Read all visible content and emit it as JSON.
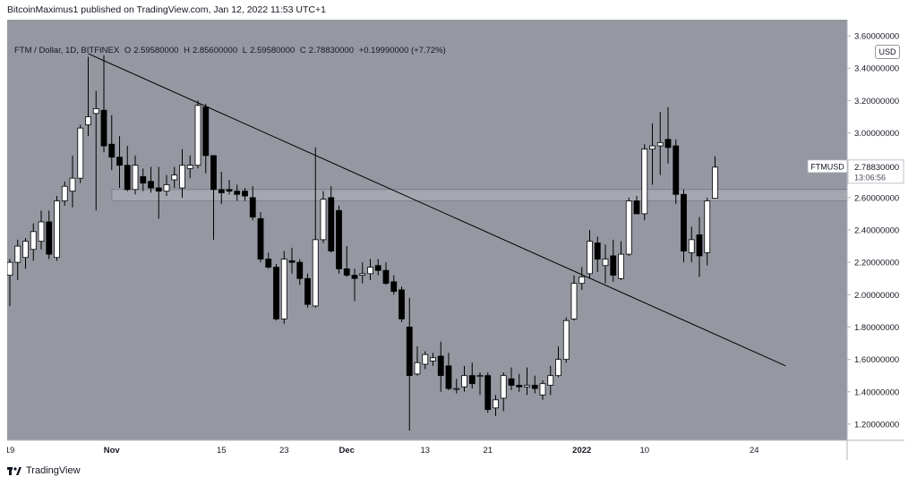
{
  "header": {
    "publisher_text": "BitcoinMaximus1 published on TradingView.com, Jan 12, 2022 11:53 UTC+1"
  },
  "legend": {
    "symbol": "FTM / Dollar, 1D, BITFINEX",
    "open_key": "O",
    "open": "2.59580000",
    "high_key": "H",
    "high": "2.85600000",
    "low_key": "L",
    "low": "2.59580000",
    "close_key": "C",
    "close": "2.78830000",
    "change": "+0.19990000 (+7.72%)"
  },
  "price_axis": {
    "currency": "USD",
    "symbol_tag": "FTMUSD",
    "last_price": "2.78830000",
    "countdown": "13:06:56"
  },
  "footer": {
    "brand": "TradingView"
  },
  "colors": {
    "plot_background": "#9598a1",
    "up_candle": "#ffffff",
    "down_candle": "#000000",
    "wick": "#000000",
    "resistance_zone": "#b2b5be",
    "trendline": "#000000",
    "price_tag": "#ffffff"
  },
  "chart_data": {
    "type": "candlestick",
    "symbol": "FTM / Dollar, 1D, BITFINEX",
    "ylim": [
      1.1,
      3.7
    ],
    "y_ticks": [
      "1.20000000",
      "1.40000000",
      "1.60000000",
      "1.80000000",
      "2.00000000",
      "2.20000000",
      "2.40000000",
      "2.60000000",
      "2.80000000",
      "3.00000000",
      "3.20000000",
      "3.40000000",
      "3.60000000"
    ],
    "x_tick_labels": [
      {
        "label": "19",
        "bar": 0
      },
      {
        "label": "Nov",
        "bar": 13,
        "bold": true
      },
      {
        "label": "15",
        "bar": 27
      },
      {
        "label": "23",
        "bar": 35
      },
      {
        "label": "Dec",
        "bar": 43,
        "bold": true
      },
      {
        "label": "13",
        "bar": 53
      },
      {
        "label": "21",
        "bar": 61
      },
      {
        "label": "2022",
        "bar": 73,
        "bold": true
      },
      {
        "label": "10",
        "bar": 81
      },
      {
        "label": "24",
        "bar": 95
      }
    ],
    "candles": [
      {
        "o": 2.12,
        "h": 2.22,
        "l": 1.93,
        "c": 2.2
      },
      {
        "o": 2.2,
        "h": 2.34,
        "l": 2.09,
        "c": 2.3
      },
      {
        "o": 2.23,
        "h": 2.35,
        "l": 2.16,
        "c": 2.33
      },
      {
        "o": 2.28,
        "h": 2.44,
        "l": 2.21,
        "c": 2.39
      },
      {
        "o": 2.33,
        "h": 2.52,
        "l": 2.28,
        "c": 2.45
      },
      {
        "o": 2.45,
        "h": 2.52,
        "l": 2.22,
        "c": 2.25
      },
      {
        "o": 2.23,
        "h": 2.61,
        "l": 2.21,
        "c": 2.58
      },
      {
        "o": 2.58,
        "h": 2.7,
        "l": 2.55,
        "c": 2.67
      },
      {
        "o": 2.64,
        "h": 2.86,
        "l": 2.54,
        "c": 2.72
      },
      {
        "o": 2.72,
        "h": 3.05,
        "l": 2.69,
        "c": 3.03
      },
      {
        "o": 3.05,
        "h": 3.47,
        "l": 2.98,
        "c": 3.1
      },
      {
        "o": 3.12,
        "h": 3.26,
        "l": 2.52,
        "c": 3.15
      },
      {
        "o": 3.14,
        "h": 3.48,
        "l": 2.88,
        "c": 2.92
      },
      {
        "o": 2.93,
        "h": 3.11,
        "l": 2.77,
        "c": 2.85
      },
      {
        "o": 2.85,
        "h": 2.98,
        "l": 2.66,
        "c": 2.8
      },
      {
        "o": 2.8,
        "h": 2.92,
        "l": 2.64,
        "c": 2.65
      },
      {
        "o": 2.65,
        "h": 2.86,
        "l": 2.62,
        "c": 2.8
      },
      {
        "o": 2.73,
        "h": 2.78,
        "l": 2.64,
        "c": 2.69
      },
      {
        "o": 2.7,
        "h": 2.79,
        "l": 2.63,
        "c": 2.66
      },
      {
        "o": 2.66,
        "h": 2.79,
        "l": 2.47,
        "c": 2.64
      },
      {
        "o": 2.64,
        "h": 2.74,
        "l": 2.61,
        "c": 2.68
      },
      {
        "o": 2.71,
        "h": 2.79,
        "l": 2.66,
        "c": 2.74
      },
      {
        "o": 2.66,
        "h": 2.9,
        "l": 2.6,
        "c": 2.8
      },
      {
        "o": 2.78,
        "h": 2.86,
        "l": 2.72,
        "c": 2.8
      },
      {
        "o": 2.8,
        "h": 3.2,
        "l": 2.78,
        "c": 3.17
      },
      {
        "o": 3.16,
        "h": 3.18,
        "l": 2.75,
        "c": 2.86
      },
      {
        "o": 2.86,
        "h": 2.86,
        "l": 2.34,
        "c": 2.65
      },
      {
        "o": 2.65,
        "h": 2.76,
        "l": 2.56,
        "c": 2.63
      },
      {
        "o": 2.65,
        "h": 2.71,
        "l": 2.62,
        "c": 2.64
      },
      {
        "o": 2.64,
        "h": 2.68,
        "l": 2.58,
        "c": 2.62
      },
      {
        "o": 2.64,
        "h": 2.66,
        "l": 2.58,
        "c": 2.61
      },
      {
        "o": 2.6,
        "h": 2.67,
        "l": 2.46,
        "c": 2.48
      },
      {
        "o": 2.47,
        "h": 2.51,
        "l": 2.2,
        "c": 2.22
      },
      {
        "o": 2.22,
        "h": 2.26,
        "l": 2.16,
        "c": 2.17
      },
      {
        "o": 2.17,
        "h": 2.19,
        "l": 1.84,
        "c": 1.85
      },
      {
        "o": 1.85,
        "h": 2.27,
        "l": 1.82,
        "c": 2.22
      },
      {
        "o": 2.21,
        "h": 2.29,
        "l": 2.13,
        "c": 2.2
      },
      {
        "o": 2.2,
        "h": 2.22,
        "l": 2.06,
        "c": 2.1
      },
      {
        "o": 2.1,
        "h": 2.13,
        "l": 1.92,
        "c": 1.94
      },
      {
        "o": 1.93,
        "h": 2.91,
        "l": 1.92,
        "c": 2.34
      },
      {
        "o": 2.34,
        "h": 2.64,
        "l": 2.32,
        "c": 2.59
      },
      {
        "o": 2.6,
        "h": 2.67,
        "l": 2.26,
        "c": 2.27
      },
      {
        "o": 2.52,
        "h": 2.55,
        "l": 2.13,
        "c": 2.16
      },
      {
        "o": 2.16,
        "h": 2.3,
        "l": 2.11,
        "c": 2.12
      },
      {
        "o": 2.12,
        "h": 2.16,
        "l": 1.96,
        "c": 2.1
      },
      {
        "o": 2.12,
        "h": 2.2,
        "l": 2.07,
        "c": 2.13
      },
      {
        "o": 2.13,
        "h": 2.22,
        "l": 2.09,
        "c": 2.17
      },
      {
        "o": 2.18,
        "h": 2.22,
        "l": 2.12,
        "c": 2.15
      },
      {
        "o": 2.15,
        "h": 2.2,
        "l": 2.06,
        "c": 2.07
      },
      {
        "o": 2.08,
        "h": 2.12,
        "l": 2.0,
        "c": 2.02
      },
      {
        "o": 2.03,
        "h": 2.05,
        "l": 1.83,
        "c": 1.85
      },
      {
        "o": 1.8,
        "h": 1.98,
        "l": 1.16,
        "c": 1.5
      },
      {
        "o": 1.51,
        "h": 1.68,
        "l": 1.5,
        "c": 1.58
      },
      {
        "o": 1.57,
        "h": 1.65,
        "l": 1.54,
        "c": 1.63
      },
      {
        "o": 1.59,
        "h": 1.64,
        "l": 1.56,
        "c": 1.61
      },
      {
        "o": 1.62,
        "h": 1.71,
        "l": 1.4,
        "c": 1.5
      },
      {
        "o": 1.56,
        "h": 1.64,
        "l": 1.41,
        "c": 1.42
      },
      {
        "o": 1.42,
        "h": 1.48,
        "l": 1.39,
        "c": 1.42
      },
      {
        "o": 1.43,
        "h": 1.56,
        "l": 1.4,
        "c": 1.5
      },
      {
        "o": 1.5,
        "h": 1.58,
        "l": 1.42,
        "c": 1.45
      },
      {
        "o": 1.5,
        "h": 1.52,
        "l": 1.38,
        "c": 1.5
      },
      {
        "o": 1.5,
        "h": 1.52,
        "l": 1.27,
        "c": 1.29
      },
      {
        "o": 1.3,
        "h": 1.38,
        "l": 1.25,
        "c": 1.35
      },
      {
        "o": 1.36,
        "h": 1.52,
        "l": 1.28,
        "c": 1.5
      },
      {
        "o": 1.48,
        "h": 1.55,
        "l": 1.41,
        "c": 1.44
      },
      {
        "o": 1.44,
        "h": 1.51,
        "l": 1.4,
        "c": 1.43
      },
      {
        "o": 1.43,
        "h": 1.55,
        "l": 1.38,
        "c": 1.44
      },
      {
        "o": 1.44,
        "h": 1.5,
        "l": 1.39,
        "c": 1.42
      },
      {
        "o": 1.38,
        "h": 1.47,
        "l": 1.35,
        "c": 1.45
      },
      {
        "o": 1.44,
        "h": 1.56,
        "l": 1.38,
        "c": 1.5
      },
      {
        "o": 1.5,
        "h": 1.68,
        "l": 1.49,
        "c": 1.6
      },
      {
        "o": 1.6,
        "h": 1.86,
        "l": 1.58,
        "c": 1.84
      },
      {
        "o": 1.85,
        "h": 2.12,
        "l": 1.84,
        "c": 2.07
      },
      {
        "o": 2.07,
        "h": 2.17,
        "l": 2.03,
        "c": 2.11
      },
      {
        "o": 2.13,
        "h": 2.4,
        "l": 2.1,
        "c": 2.33
      },
      {
        "o": 2.32,
        "h": 2.36,
        "l": 2.14,
        "c": 2.22
      },
      {
        "o": 2.18,
        "h": 2.31,
        "l": 2.07,
        "c": 2.22
      },
      {
        "o": 2.24,
        "h": 2.34,
        "l": 2.08,
        "c": 2.12
      },
      {
        "o": 2.1,
        "h": 2.33,
        "l": 2.09,
        "c": 2.25
      },
      {
        "o": 2.25,
        "h": 2.6,
        "l": 2.24,
        "c": 2.58
      },
      {
        "o": 2.58,
        "h": 2.61,
        "l": 2.51,
        "c": 2.5
      },
      {
        "o": 2.5,
        "h": 2.93,
        "l": 2.46,
        "c": 2.9
      },
      {
        "o": 2.9,
        "h": 3.06,
        "l": 2.68,
        "c": 2.92
      },
      {
        "o": 2.92,
        "h": 3.13,
        "l": 2.74,
        "c": 2.94
      },
      {
        "o": 2.96,
        "h": 3.16,
        "l": 2.81,
        "c": 2.91
      },
      {
        "o": 2.92,
        "h": 2.96,
        "l": 2.56,
        "c": 2.62
      },
      {
        "o": 2.62,
        "h": 2.65,
        "l": 2.2,
        "c": 2.27
      },
      {
        "o": 2.26,
        "h": 2.42,
        "l": 2.2,
        "c": 2.34
      },
      {
        "o": 2.37,
        "h": 2.48,
        "l": 2.11,
        "c": 2.24
      },
      {
        "o": 2.26,
        "h": 2.6,
        "l": 2.18,
        "c": 2.58
      },
      {
        "o": 2.5958,
        "h": 2.856,
        "l": 2.5958,
        "c": 2.7883
      }
    ],
    "resistance_zone": {
      "low": 2.58,
      "high": 2.65
    },
    "trendline": {
      "from": {
        "bar": 10,
        "price": 3.49
      },
      "to": {
        "bar": 99,
        "price": 1.56
      }
    }
  }
}
